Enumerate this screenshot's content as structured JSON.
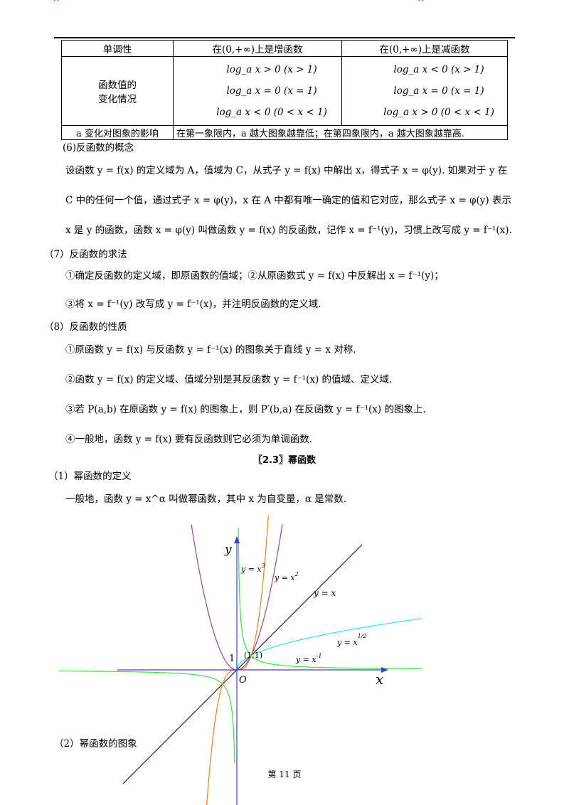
{
  "marks": {
    "left": "^",
    "right": "^"
  },
  "table": {
    "header": {
      "label": "单调性",
      "col1": "在(0,+∞)上是增函数",
      "col2": "在(0,+∞)上是减函数"
    },
    "values": {
      "label_line1": "函数值的",
      "label_line2": "变化情况",
      "col1": [
        "log_a x > 0  (x > 1)",
        "log_a x = 0  (x = 1)",
        "log_a x < 0  (0 < x < 1)"
      ],
      "col2": [
        "log_a x < 0  (x > 1)",
        "log_a x = 0  (x = 1)",
        "log_a x > 0  (0 < x < 1)"
      ]
    },
    "effect": {
      "label": "a 变化对图象的影响",
      "text": "在第一象限内，a 越大图象越靠低；在第四象限内，a 越大图象越靠高."
    }
  },
  "sections": {
    "s6_title": "(6)反函数的概念",
    "s6_p1": "设函数 y = f(x) 的定义域为 A，值域为 C，从式子 y = f(x) 中解出 x，得式子 x = φ(y). 如果对于 y 在",
    "s6_p2": "C 中的任何一个值，通过式子 x = φ(y)，x 在 A 中都有唯一确定的值和它对应，那么式子 x = φ(y) 表示",
    "s6_p3": "x 是 y 的函数，函数 x = φ(y) 叫做函数 y = f(x) 的反函数，记作 x = f⁻¹(y)，习惯上改写成 y = f⁻¹(x).",
    "s7_title": "（7）反函数的求法",
    "s7_p1": "①确定反函数的定义域，即原函数的值域；②从原函数式 y = f(x) 中反解出 x = f⁻¹(y)；",
    "s7_p2": "③将 x = f⁻¹(y) 改写成 y = f⁻¹(x)，并注明反函数的定义域.",
    "s8_title": "（8）反函数的性质",
    "s8_p1": "①原函数 y = f(x) 与反函数 y = f⁻¹(x) 的图象关于直线 y = x 对称.",
    "s8_p2": "②函数 y = f(x) 的定义域、值域分别是其反函数 y = f⁻¹(x) 的值域、定义域.",
    "s8_p3": "③若 P(a,b) 在原函数 y = f(x) 的图象上，则 P′(b,a) 在反函数 y = f⁻¹(x) 的图象上.",
    "s8_p4": "④一般地，函数 y = f(x) 要有反函数则它必须为单调函数.",
    "heading_23": "〖2.3〗幂函数",
    "p1_title": "（1）幂函数的定义",
    "p1_text": "一般地，函数 y = x^α 叫做幂函数，其中 x 为自变量，α 是常数.",
    "p2_title": "（2）幂函数的图象"
  },
  "graph": {
    "labels": {
      "y_axis": "y",
      "x_axis": "x",
      "origin": "O",
      "one": "1",
      "point": "(1,1)",
      "cube": "y = x",
      "cube_exp": "3",
      "square": "y = x",
      "square_exp": "2",
      "identity": "y = x",
      "sqrt": "y = x",
      "sqrt_exp": "1/2",
      "inverse": "y = x",
      "inverse_exp": "-1"
    },
    "colors": {
      "axes": "#4040c0",
      "cube": "#f08020",
      "square": "#9a40b0",
      "identity": "#222222",
      "sqrt": "#30e0f0",
      "inverse": "#40dd40"
    }
  },
  "footer": "第  11  页"
}
